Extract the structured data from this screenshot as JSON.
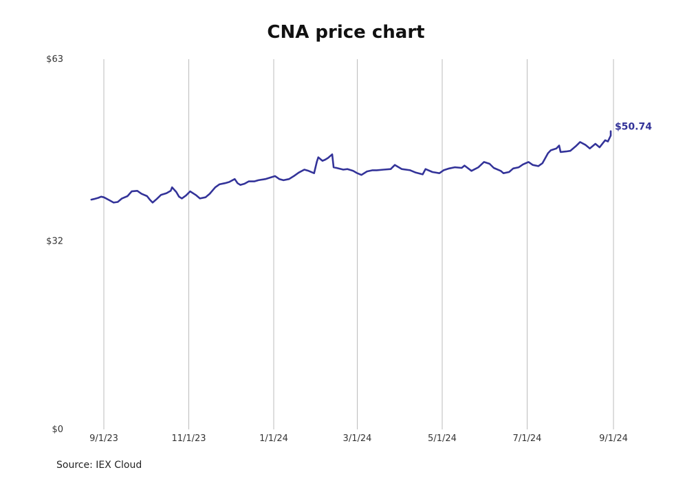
{
  "chart_data": {
    "type": "line",
    "title": "CNA price chart",
    "xlabel": "",
    "ylabel": "",
    "ylim": [
      0,
      63
    ],
    "y_ticks": [
      {
        "value": 0,
        "label": "$0"
      },
      {
        "value": 32,
        "label": "$32"
      },
      {
        "value": 63,
        "label": "$63"
      }
    ],
    "x_ticks": [
      {
        "date": "2023-09-01",
        "label": "9/1/23"
      },
      {
        "date": "2023-11-01",
        "label": "11/1/23"
      },
      {
        "date": "2024-01-01",
        "label": "1/1/24"
      },
      {
        "date": "2024-03-01",
        "label": "3/1/24"
      },
      {
        "date": "2024-05-01",
        "label": "5/1/24"
      },
      {
        "date": "2024-07-01",
        "label": "7/1/24"
      },
      {
        "date": "2024-09-01",
        "label": "9/1/24"
      }
    ],
    "xlim": [
      "2023-08-24",
      "2024-09-15"
    ],
    "grid": {
      "vertical": true,
      "horizontal": false
    },
    "line_color": "#333399",
    "last_value_label": "$50.74",
    "series": [
      {
        "points": [
          [
            "2023-08-23",
            39.1
          ],
          [
            "2023-08-25",
            39.2
          ],
          [
            "2023-08-28",
            39.4
          ],
          [
            "2023-08-30",
            39.6
          ],
          [
            "2023-09-01",
            39.5
          ],
          [
            "2023-09-05",
            39.0
          ],
          [
            "2023-09-08",
            38.6
          ],
          [
            "2023-09-11",
            38.7
          ],
          [
            "2023-09-14",
            39.3
          ],
          [
            "2023-09-18",
            39.7
          ],
          [
            "2023-09-21",
            40.5
          ],
          [
            "2023-09-25",
            40.6
          ],
          [
            "2023-09-28",
            40.1
          ],
          [
            "2023-10-02",
            39.7
          ],
          [
            "2023-10-04",
            39.1
          ],
          [
            "2023-10-06",
            38.6
          ],
          [
            "2023-10-09",
            39.2
          ],
          [
            "2023-10-12",
            39.9
          ],
          [
            "2023-10-16",
            40.2
          ],
          [
            "2023-10-19",
            40.6
          ],
          [
            "2023-10-20",
            41.2
          ],
          [
            "2023-10-23",
            40.4
          ],
          [
            "2023-10-25",
            39.6
          ],
          [
            "2023-10-27",
            39.3
          ],
          [
            "2023-10-30",
            39.8
          ],
          [
            "2023-11-02",
            40.5
          ],
          [
            "2023-11-06",
            39.9
          ],
          [
            "2023-11-09",
            39.3
          ],
          [
            "2023-11-13",
            39.5
          ],
          [
            "2023-11-16",
            40.1
          ],
          [
            "2023-11-20",
            41.2
          ],
          [
            "2023-11-23",
            41.7
          ],
          [
            "2023-11-27",
            41.9
          ],
          [
            "2023-11-30",
            42.1
          ],
          [
            "2023-12-04",
            42.6
          ],
          [
            "2023-12-06",
            41.9
          ],
          [
            "2023-12-08",
            41.6
          ],
          [
            "2023-12-11",
            41.8
          ],
          [
            "2023-12-14",
            42.2
          ],
          [
            "2023-12-18",
            42.2
          ],
          [
            "2023-12-21",
            42.4
          ],
          [
            "2023-12-26",
            42.6
          ],
          [
            "2024-01-02",
            43.1
          ],
          [
            "2024-01-05",
            42.6
          ],
          [
            "2024-01-08",
            42.4
          ],
          [
            "2024-01-12",
            42.6
          ],
          [
            "2024-01-16",
            43.2
          ],
          [
            "2024-01-19",
            43.7
          ],
          [
            "2024-01-23",
            44.2
          ],
          [
            "2024-01-26",
            44.0
          ],
          [
            "2024-01-30",
            43.6
          ],
          [
            "2024-02-01",
            45.6
          ],
          [
            "2024-02-02",
            46.3
          ],
          [
            "2024-02-05",
            45.7
          ],
          [
            "2024-02-07",
            45.9
          ],
          [
            "2024-02-09",
            46.2
          ],
          [
            "2024-02-12",
            46.8
          ],
          [
            "2024-02-13",
            44.6
          ],
          [
            "2024-02-15",
            44.5
          ],
          [
            "2024-02-20",
            44.2
          ],
          [
            "2024-02-23",
            44.3
          ],
          [
            "2024-02-27",
            44.0
          ],
          [
            "2024-03-01",
            43.6
          ],
          [
            "2024-03-04",
            43.3
          ],
          [
            "2024-03-08",
            43.9
          ],
          [
            "2024-03-12",
            44.1
          ],
          [
            "2024-03-15",
            44.1
          ],
          [
            "2024-03-20",
            44.2
          ],
          [
            "2024-03-25",
            44.3
          ],
          [
            "2024-03-28",
            45.0
          ],
          [
            "2024-04-02",
            44.3
          ],
          [
            "2024-04-08",
            44.1
          ],
          [
            "2024-04-12",
            43.7
          ],
          [
            "2024-04-17",
            43.4
          ],
          [
            "2024-04-19",
            44.3
          ],
          [
            "2024-04-24",
            43.8
          ],
          [
            "2024-04-29",
            43.6
          ],
          [
            "2024-05-02",
            44.1
          ],
          [
            "2024-05-06",
            44.4
          ],
          [
            "2024-05-10",
            44.6
          ],
          [
            "2024-05-15",
            44.5
          ],
          [
            "2024-05-17",
            44.9
          ],
          [
            "2024-05-22",
            44.0
          ],
          [
            "2024-05-27",
            44.6
          ],
          [
            "2024-05-31",
            45.5
          ],
          [
            "2024-06-04",
            45.2
          ],
          [
            "2024-06-07",
            44.5
          ],
          [
            "2024-06-12",
            44.0
          ],
          [
            "2024-06-14",
            43.6
          ],
          [
            "2024-06-18",
            43.8
          ],
          [
            "2024-06-21",
            44.4
          ],
          [
            "2024-06-25",
            44.6
          ],
          [
            "2024-06-28",
            45.1
          ],
          [
            "2024-07-02",
            45.5
          ],
          [
            "2024-07-05",
            45.0
          ],
          [
            "2024-07-09",
            44.8
          ],
          [
            "2024-07-12",
            45.3
          ],
          [
            "2024-07-16",
            47.0
          ],
          [
            "2024-07-18",
            47.5
          ],
          [
            "2024-07-22",
            47.8
          ],
          [
            "2024-07-24",
            48.3
          ],
          [
            "2024-07-25",
            47.2
          ],
          [
            "2024-07-29",
            47.3
          ],
          [
            "2024-08-01",
            47.4
          ],
          [
            "2024-08-05",
            48.2
          ],
          [
            "2024-08-08",
            48.9
          ],
          [
            "2024-08-12",
            48.4
          ],
          [
            "2024-08-15",
            47.8
          ],
          [
            "2024-08-19",
            48.6
          ],
          [
            "2024-08-22",
            48.0
          ],
          [
            "2024-08-26",
            49.2
          ],
          [
            "2024-08-28",
            49.0
          ],
          [
            "2024-08-30",
            50.0
          ],
          [
            "2024-08-30",
            50.74
          ]
        ]
      }
    ]
  },
  "source": "Source: IEX Cloud"
}
